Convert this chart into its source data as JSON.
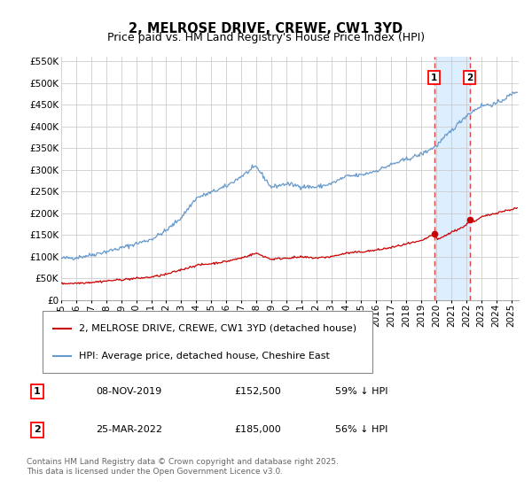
{
  "title": "2, MELROSE DRIVE, CREWE, CW1 3YD",
  "subtitle": "Price paid vs. HM Land Registry's House Price Index (HPI)",
  "ylim": [
    0,
    560000
  ],
  "yticks": [
    0,
    50000,
    100000,
    150000,
    200000,
    250000,
    300000,
    350000,
    400000,
    450000,
    500000,
    550000
  ],
  "ytick_labels": [
    "£0",
    "£50K",
    "£100K",
    "£150K",
    "£200K",
    "£250K",
    "£300K",
    "£350K",
    "£400K",
    "£450K",
    "£500K",
    "£550K"
  ],
  "xlim_start": 1995.0,
  "xlim_end": 2025.5,
  "xtick_years": [
    1995,
    1996,
    1997,
    1998,
    1999,
    2000,
    2001,
    2002,
    2003,
    2004,
    2005,
    2006,
    2007,
    2008,
    2009,
    2010,
    2011,
    2012,
    2013,
    2014,
    2015,
    2016,
    2017,
    2018,
    2019,
    2020,
    2021,
    2022,
    2023,
    2024,
    2025
  ],
  "event1_x": 2019.86,
  "event1_y": 152500,
  "event1_label": "1",
  "event1_date": "08-NOV-2019",
  "event1_price": "£152,500",
  "event1_hpi": "59% ↓ HPI",
  "event2_x": 2022.23,
  "event2_y": 185000,
  "event2_label": "2",
  "event2_date": "25-MAR-2022",
  "event2_price": "£185,000",
  "event2_hpi": "56% ↓ HPI",
  "red_line_color": "#cc0000",
  "blue_line_color": "#6699cc",
  "background_color": "#ffffff",
  "grid_color": "#cccccc",
  "event_region_color": "#ddeeff",
  "vline_color": "#dd4444",
  "legend1_label": "2, MELROSE DRIVE, CREWE, CW1 3YD (detached house)",
  "legend2_label": "HPI: Average price, detached house, Cheshire East",
  "footer": "Contains HM Land Registry data © Crown copyright and database right 2025.\nThis data is licensed under the Open Government Licence v3.0.",
  "title_fontsize": 10.5,
  "subtitle_fontsize": 9,
  "tick_fontsize": 7.5,
  "legend_fontsize": 8,
  "table_fontsize": 8,
  "footer_fontsize": 6.5
}
